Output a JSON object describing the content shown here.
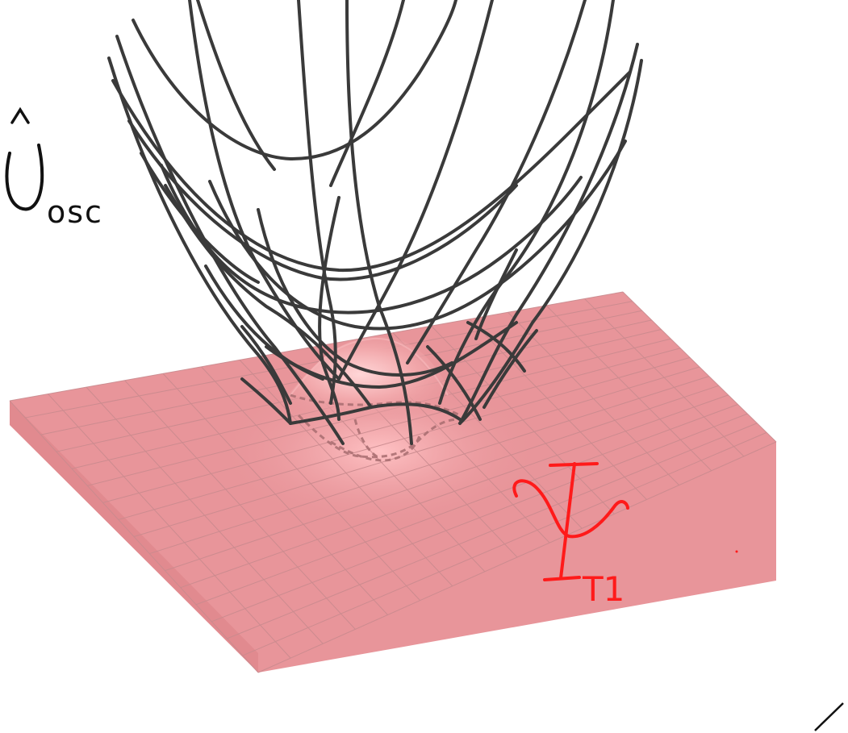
{
  "figure": {
    "labels": {
      "potential": {
        "glyph": "U",
        "accent": "^",
        "subscript": "osc",
        "color": "#111111"
      },
      "wavefunction": {
        "glyph": "Ψ",
        "subscript": "T1",
        "color": "#ff1a1a"
      }
    },
    "colors": {
      "paraboloid_wire": "#3a3a3a",
      "surface_fill": "#e8959a",
      "surface_grid": "#c98a8e",
      "bump_highlight": "#ffc4c6",
      "dashed_contour": "#a86d70"
    }
  }
}
